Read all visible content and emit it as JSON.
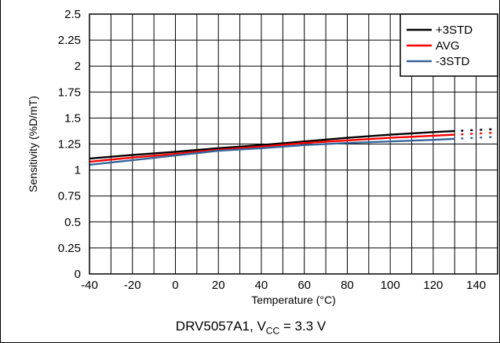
{
  "chart_data": {
    "type": "line",
    "title": "",
    "xlabel": "Temperature (°C)",
    "ylabel": "Sensitivity (%D/mT)",
    "xlim": [
      -40,
      150
    ],
    "ylim": [
      0,
      2.5
    ],
    "x_ticks": [
      "-40",
      "-20",
      "0",
      "20",
      "40",
      "60",
      "80",
      "100",
      "120",
      "140"
    ],
    "y_ticks": [
      "0",
      "0.25",
      "0.5",
      "0.75",
      "1",
      "1.25",
      "1.5",
      "1.75",
      "2",
      "2.25",
      "2.5"
    ],
    "grid": true,
    "legend_position": "top-right",
    "x": [
      -40,
      -20,
      0,
      20,
      40,
      60,
      80,
      100,
      120,
      130
    ],
    "series": [
      {
        "name": "+3STD",
        "color": "#000000",
        "values": [
          1.11,
          1.145,
          1.175,
          1.21,
          1.24,
          1.275,
          1.31,
          1.34,
          1.365,
          1.375
        ],
        "extrapolated_to": 150
      },
      {
        "name": "AVG",
        "color": "#ff0000",
        "values": [
          1.08,
          1.12,
          1.155,
          1.195,
          1.225,
          1.26,
          1.285,
          1.31,
          1.33,
          1.34
        ],
        "extrapolated_to": 150
      },
      {
        "name": "-3STD",
        "color": "#336699",
        "values": [
          1.05,
          1.095,
          1.14,
          1.185,
          1.21,
          1.24,
          1.26,
          1.275,
          1.29,
          1.3
        ],
        "extrapolated_to": 150
      }
    ]
  },
  "caption": {
    "prefix": "DRV5057A1, V",
    "subscript": "CC",
    "suffix": " = 3.3 V"
  }
}
